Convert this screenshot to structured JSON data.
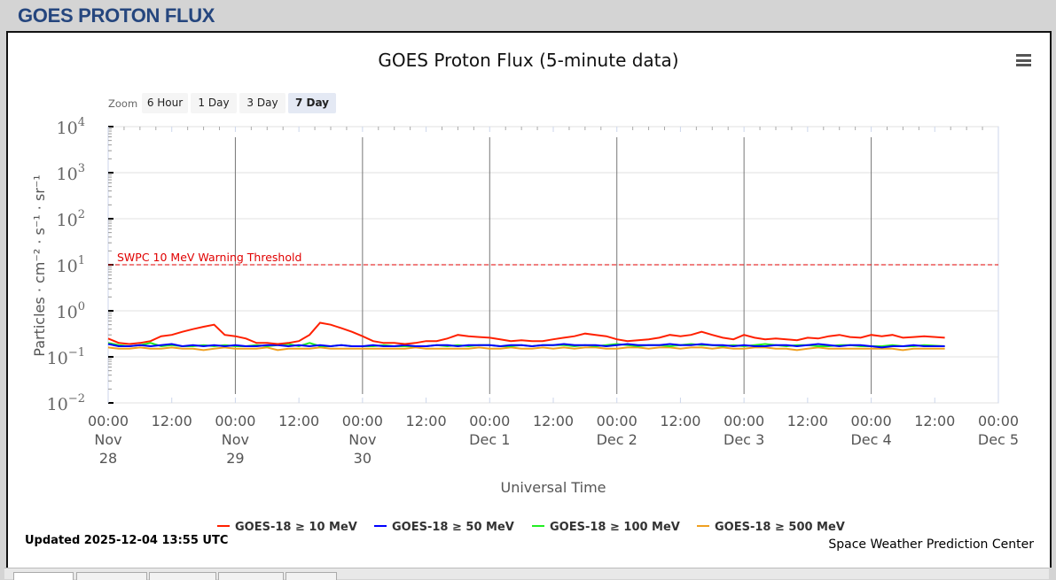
{
  "page_title": "GOES PROTON FLUX",
  "menu_icon": "hamburger-menu-icon",
  "zoom": {
    "label": "Zoom",
    "buttons": [
      "6 Hour",
      "1 Day",
      "3 Day",
      "7 Day"
    ],
    "selected": "7 Day"
  },
  "updated": "Updated 2025-12-04 13:55 UTC",
  "credit": "Space Weather Prediction Center",
  "chart_data": {
    "type": "line",
    "title": "GOES Proton Flux (5-minute data)",
    "xlabel": "Universal Time",
    "ylabel": "Particles · cm⁻² · s⁻¹ · sr⁻¹",
    "yscale": "log",
    "ylim": [
      0.01,
      10000
    ],
    "y_ticks": [
      {
        "base": "10",
        "exp": "4"
      },
      {
        "base": "10",
        "exp": "3"
      },
      {
        "base": "10",
        "exp": "2"
      },
      {
        "base": "10",
        "exp": "1"
      },
      {
        "base": "10",
        "exp": "0"
      },
      {
        "base": "10",
        "exp": "−1"
      },
      {
        "base": "10",
        "exp": "−2"
      }
    ],
    "x_range_hours": [
      0,
      168
    ],
    "x_start": "Nov 28 00:00 UTC",
    "x_ticks": [
      {
        "h": 0,
        "time": "00:00",
        "d1": "Nov",
        "d2": "28"
      },
      {
        "h": 12,
        "time": "12:00"
      },
      {
        "h": 24,
        "time": "00:00",
        "d1": "Nov",
        "d2": "29"
      },
      {
        "h": 36,
        "time": "12:00"
      },
      {
        "h": 48,
        "time": "00:00",
        "d1": "Nov",
        "d2": "30"
      },
      {
        "h": 60,
        "time": "12:00"
      },
      {
        "h": 72,
        "time": "00:00",
        "d1": "Dec 1"
      },
      {
        "h": 84,
        "time": "12:00"
      },
      {
        "h": 96,
        "time": "00:00",
        "d1": "Dec 2"
      },
      {
        "h": 108,
        "time": "12:00"
      },
      {
        "h": 120,
        "time": "00:00",
        "d1": "Dec 3"
      },
      {
        "h": 132,
        "time": "12:00"
      },
      {
        "h": 144,
        "time": "00:00",
        "d1": "Dec 4"
      },
      {
        "h": 156,
        "time": "12:00"
      },
      {
        "h": 168,
        "time": "00:00",
        "d1": "Dec 5"
      }
    ],
    "threshold": {
      "value": 10,
      "label": "SWPC 10 MeV Warning Threshold",
      "color": "#e00000"
    },
    "x_step_hours": 2,
    "series": [
      {
        "name": "GOES-18 ≥ 10 MeV",
        "color": "#ff2000",
        "values": [
          0.25,
          0.2,
          0.19,
          0.2,
          0.22,
          0.28,
          0.3,
          0.35,
          0.4,
          0.45,
          0.5,
          0.3,
          0.28,
          0.25,
          0.2,
          0.2,
          0.19,
          0.2,
          0.22,
          0.3,
          0.55,
          0.5,
          0.42,
          0.35,
          0.28,
          0.22,
          0.2,
          0.2,
          0.19,
          0.2,
          0.22,
          0.22,
          0.25,
          0.3,
          0.28,
          0.27,
          0.26,
          0.24,
          0.22,
          0.23,
          0.22,
          0.22,
          0.24,
          0.26,
          0.28,
          0.32,
          0.3,
          0.28,
          0.24,
          0.22,
          0.23,
          0.24,
          0.26,
          0.3,
          0.28,
          0.3,
          0.35,
          0.3,
          0.26,
          0.24,
          0.3,
          0.26,
          0.24,
          0.25,
          0.24,
          0.23,
          0.26,
          0.25,
          0.28,
          0.3,
          0.27,
          0.26,
          0.3,
          0.28,
          0.3,
          0.26,
          0.27,
          0.28,
          0.26
        ]
      },
      {
        "name": "GOES-18 ≥ 50 MeV",
        "color": "#0000ff",
        "values": [
          0.19,
          0.17,
          0.17,
          0.18,
          0.17,
          0.18,
          0.19,
          0.17,
          0.18,
          0.17,
          0.18,
          0.17,
          0.18,
          0.17,
          0.17,
          0.18,
          0.18,
          0.17,
          0.18,
          0.17,
          0.18,
          0.17,
          0.18,
          0.17,
          0.17,
          0.18,
          0.17,
          0.17,
          0.18,
          0.17,
          0.17,
          0.18,
          0.18,
          0.17,
          0.18,
          0.18,
          0.18,
          0.17,
          0.18,
          0.18,
          0.17,
          0.18,
          0.18,
          0.19,
          0.18,
          0.18,
          0.18,
          0.17,
          0.18,
          0.19,
          0.18,
          0.18,
          0.18,
          0.19,
          0.18,
          0.18,
          0.19,
          0.18,
          0.18,
          0.17,
          0.18,
          0.17,
          0.17,
          0.18,
          0.18,
          0.17,
          0.18,
          0.19,
          0.18,
          0.17,
          0.18,
          0.18,
          0.17,
          0.16,
          0.17,
          0.17,
          0.18,
          0.17,
          0.17
        ]
      },
      {
        "name": "GOES-18 ≥ 100 MeV",
        "color": "#22ee22",
        "values": [
          0.2,
          0.18,
          0.17,
          0.18,
          0.2,
          0.17,
          0.18,
          0.17,
          0.17,
          0.18,
          0.17,
          0.18,
          0.17,
          0.17,
          0.18,
          0.17,
          0.18,
          0.19,
          0.17,
          0.2,
          0.17,
          0.17,
          0.18,
          0.17,
          0.17,
          0.17,
          0.18,
          0.17,
          0.17,
          0.17,
          0.17,
          0.18,
          0.17,
          0.18,
          0.17,
          0.18,
          0.18,
          0.17,
          0.17,
          0.18,
          0.17,
          0.18,
          0.18,
          0.18,
          0.17,
          0.18,
          0.17,
          0.18,
          0.19,
          0.18,
          0.17,
          0.18,
          0.18,
          0.17,
          0.18,
          0.19,
          0.18,
          0.18,
          0.17,
          0.18,
          0.17,
          0.18,
          0.19,
          0.18,
          0.17,
          0.18,
          0.18,
          0.17,
          0.17,
          0.18,
          0.18,
          0.17,
          0.17,
          0.17,
          0.18,
          0.17,
          0.17,
          0.18,
          0.17
        ]
      },
      {
        "name": "GOES-18 ≥ 500 MeV",
        "color": "#f0a020",
        "values": [
          0.16,
          0.15,
          0.15,
          0.16,
          0.15,
          0.15,
          0.16,
          0.15,
          0.15,
          0.14,
          0.15,
          0.16,
          0.15,
          0.15,
          0.15,
          0.16,
          0.14,
          0.15,
          0.15,
          0.15,
          0.16,
          0.15,
          0.15,
          0.15,
          0.15,
          0.15,
          0.15,
          0.15,
          0.15,
          0.16,
          0.15,
          0.15,
          0.15,
          0.15,
          0.15,
          0.16,
          0.15,
          0.15,
          0.16,
          0.15,
          0.15,
          0.16,
          0.15,
          0.16,
          0.15,
          0.16,
          0.16,
          0.15,
          0.15,
          0.16,
          0.16,
          0.15,
          0.16,
          0.16,
          0.15,
          0.16,
          0.16,
          0.15,
          0.16,
          0.15,
          0.15,
          0.16,
          0.16,
          0.15,
          0.15,
          0.14,
          0.15,
          0.16,
          0.15,
          0.15,
          0.15,
          0.15,
          0.15,
          0.15,
          0.15,
          0.14,
          0.15,
          0.15,
          0.15
        ]
      }
    ],
    "legend_position": "bottom"
  }
}
